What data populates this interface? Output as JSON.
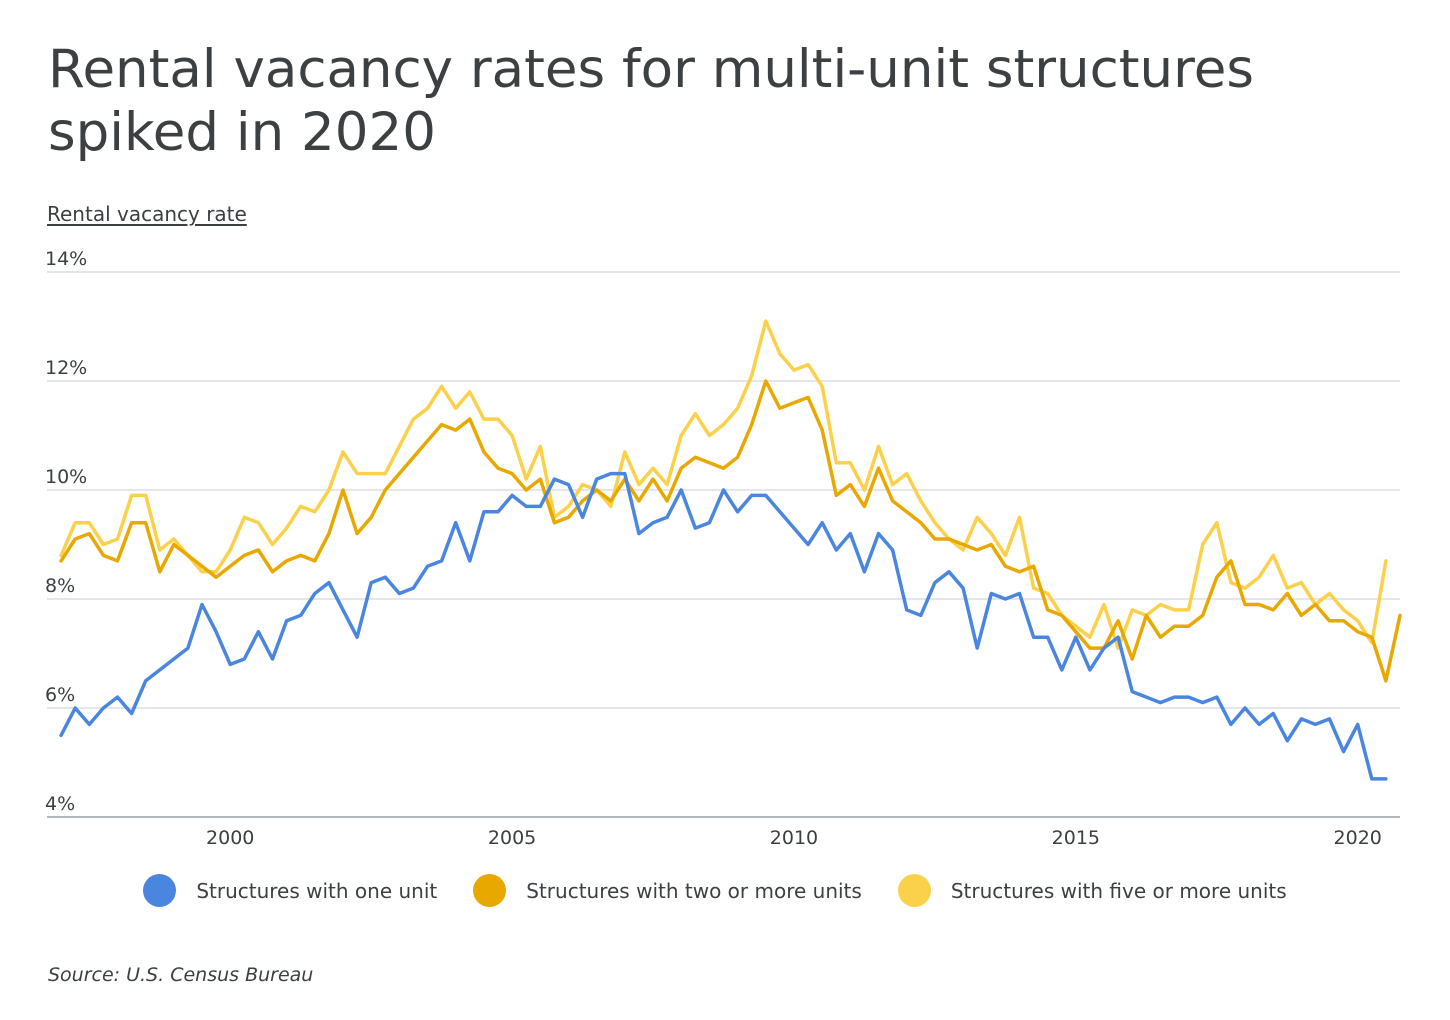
{
  "title": "Rental vacancy rates for multi-unit structures spiked in 2020",
  "source": "Source:  U.S. Census Bureau",
  "chart_data": {
    "type": "line",
    "title": "Rental vacancy rates for multi-unit structures spiked in 2020",
    "ylabel": "Rental vacancy rate",
    "xlabel": "",
    "x_start": 1997,
    "x_step": 0.25,
    "xlim": [
      1996.75,
      2020.75
    ],
    "ylim": [
      4,
      14
    ],
    "x_ticks": [
      2000,
      2005,
      2010,
      2015,
      2020
    ],
    "x_tick_labels": [
      "2000",
      "2005",
      "2010",
      "2015",
      "2020"
    ],
    "y_ticks": [
      4,
      6,
      8,
      10,
      12,
      14
    ],
    "y_tick_labels": [
      "4%",
      "6%",
      "8%",
      "10%",
      "12%",
      "14%"
    ],
    "grid": true,
    "legend_position": "bottom-center",
    "series": [
      {
        "name": "Structures with one unit",
        "color": "#4a86e0",
        "values": [
          5.5,
          6.0,
          5.7,
          6.0,
          6.2,
          5.9,
          6.5,
          6.7,
          6.9,
          7.1,
          7.9,
          7.4,
          6.8,
          6.9,
          7.4,
          6.9,
          7.6,
          7.7,
          8.1,
          8.3,
          7.8,
          7.3,
          8.3,
          8.4,
          8.1,
          8.2,
          8.6,
          8.7,
          9.4,
          8.7,
          9.6,
          9.6,
          9.9,
          9.7,
          9.7,
          10.2,
          10.1,
          9.5,
          10.2,
          10.3,
          10.3,
          9.2,
          9.4,
          9.5,
          10.0,
          9.3,
          9.4,
          10.0,
          9.6,
          9.9,
          9.9,
          9.6,
          9.3,
          9.0,
          9.4,
          8.9,
          9.2,
          8.5,
          9.2,
          8.9,
          7.8,
          7.7,
          8.3,
          8.5,
          8.2,
          7.1,
          8.1,
          8.0,
          8.1,
          7.3,
          7.3,
          6.7,
          7.3,
          6.7,
          7.1,
          7.3,
          6.3,
          6.2,
          6.1,
          6.2,
          6.2,
          6.1,
          6.2,
          5.7,
          6.0,
          5.7,
          5.9,
          5.4,
          5.8,
          5.7,
          5.8,
          5.2,
          5.7,
          4.7,
          4.7
        ]
      },
      {
        "name": "Structures with two or more units",
        "color": "#e9a800",
        "values": [
          8.7,
          9.1,
          9.2,
          8.8,
          8.7,
          9.4,
          9.4,
          8.5,
          9.0,
          8.8,
          8.6,
          8.4,
          8.6,
          8.8,
          8.9,
          8.5,
          8.7,
          8.8,
          8.7,
          9.2,
          10.0,
          9.2,
          9.5,
          10.0,
          10.3,
          10.6,
          10.9,
          11.2,
          11.1,
          11.3,
          10.7,
          10.4,
          10.3,
          10.0,
          10.2,
          9.4,
          9.5,
          9.8,
          10.0,
          9.8,
          10.2,
          9.8,
          10.2,
          9.8,
          10.4,
          10.6,
          10.5,
          10.4,
          10.6,
          11.2,
          12.0,
          11.5,
          11.6,
          11.7,
          11.1,
          9.9,
          10.1,
          9.7,
          10.4,
          9.8,
          9.6,
          9.4,
          9.1,
          9.1,
          9.0,
          8.9,
          9.0,
          8.6,
          8.5,
          8.6,
          7.8,
          7.7,
          7.4,
          7.1,
          7.1,
          7.6,
          6.9,
          7.7,
          7.3,
          7.5,
          7.5,
          7.7,
          8.4,
          8.7,
          7.9,
          7.9,
          7.8,
          8.1,
          7.7,
          7.9,
          7.6,
          7.6,
          7.4,
          7.3,
          6.5,
          7.7
        ]
      },
      {
        "name": "Structures with five or more units",
        "color": "#fbd14b",
        "values": [
          8.8,
          9.4,
          9.4,
          9.0,
          9.1,
          9.9,
          9.9,
          8.9,
          9.1,
          8.8,
          8.5,
          8.5,
          8.9,
          9.5,
          9.4,
          9.0,
          9.3,
          9.7,
          9.6,
          10.0,
          10.7,
          10.3,
          10.3,
          10.3,
          10.8,
          11.3,
          11.5,
          11.9,
          11.5,
          11.8,
          11.3,
          11.3,
          11.0,
          10.2,
          10.8,
          9.5,
          9.7,
          10.1,
          10.0,
          9.7,
          10.7,
          10.1,
          10.4,
          10.1,
          11.0,
          11.4,
          11.0,
          11.2,
          11.5,
          12.1,
          13.1,
          12.5,
          12.2,
          12.3,
          11.9,
          10.5,
          10.5,
          10.0,
          10.8,
          10.1,
          10.3,
          9.8,
          9.4,
          9.1,
          8.9,
          9.5,
          9.2,
          8.8,
          9.5,
          8.2,
          8.1,
          7.7,
          7.5,
          7.3,
          7.9,
          7.1,
          7.8,
          7.7,
          7.9,
          7.8,
          7.8,
          9.0,
          9.4,
          8.3,
          8.2,
          8.4,
          8.8,
          8.2,
          8.3,
          7.9,
          8.1,
          7.8,
          7.6,
          7.2,
          8.7
        ]
      }
    ]
  }
}
